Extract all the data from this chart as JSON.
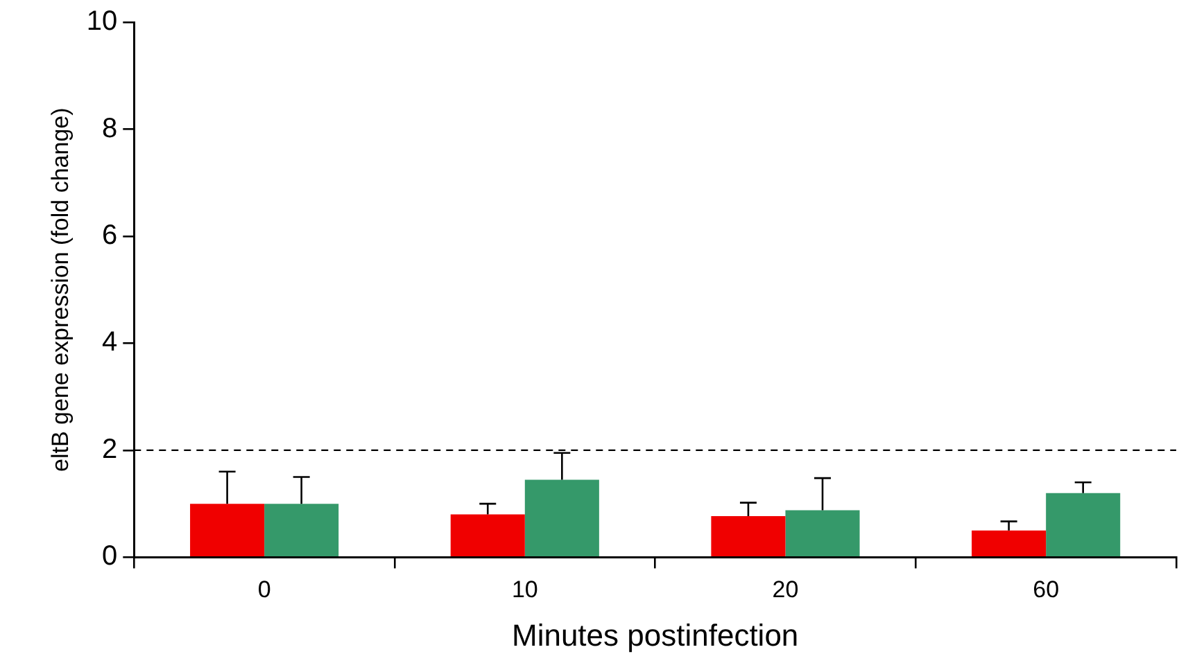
{
  "chart_data": {
    "type": "bar",
    "xlabel": "Minutes postinfection",
    "ylabel": "eltB gene expression (fold change)",
    "categories": [
      "0",
      "10",
      "20",
      "60"
    ],
    "series": [
      {
        "color": "#f00000",
        "values": [
          1.0,
          0.8,
          0.77,
          0.5
        ],
        "errors": [
          [
            1.0,
            1.6
          ],
          [
            0.8,
            1.0
          ],
          [
            0.77,
            1.02
          ],
          [
            0.5,
            0.67
          ]
        ]
      },
      {
        "color": "#35996a",
        "values": [
          1.0,
          1.45,
          0.88,
          1.2
        ],
        "errors": [
          [
            1.0,
            1.5
          ],
          [
            1.45,
            1.95
          ],
          [
            0.88,
            1.48
          ],
          [
            1.2,
            1.4
          ]
        ]
      }
    ],
    "ylim": [
      0,
      10
    ],
    "yticks": [
      0,
      2,
      4,
      6,
      8,
      10
    ],
    "grid": false,
    "legend": false,
    "ref_lines": [
      {
        "axis": "y",
        "value": 2,
        "color": "#000000",
        "line_style": "dashed"
      }
    ]
  }
}
